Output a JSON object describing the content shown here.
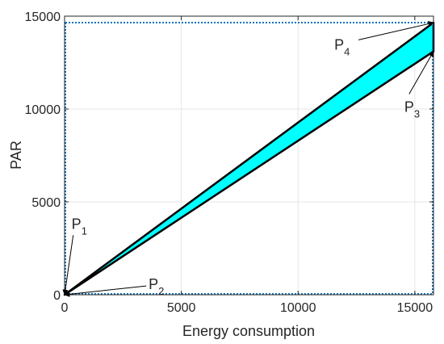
{
  "chart_data": {
    "type": "area",
    "title": "",
    "xlabel": "Energy consumption",
    "ylabel": "PAR",
    "xlim": [
      0,
      15800
    ],
    "ylim": [
      0,
      15000
    ],
    "xticks": [
      0,
      5000,
      10000,
      15000
    ],
    "yticks": [
      0,
      5000,
      10000,
      15000
    ],
    "xtick_labels": [
      "0",
      "5000",
      "10000",
      "15000"
    ],
    "ytick_labels": [
      "0",
      "5000",
      "10000",
      "15000"
    ],
    "grid": true,
    "region_color": "#00ffff",
    "edge_color": "#000000",
    "box_color": "#0072bd",
    "region_polygon": [
      {
        "x": 0,
        "y": 0
      },
      {
        "x": 15800,
        "y": 14650
      },
      {
        "x": 15800,
        "y": 13100
      },
      {
        "x": 0,
        "y": 0
      }
    ],
    "dotted_box": {
      "x": [
        0,
        15800
      ],
      "y": [
        0,
        14650
      ]
    },
    "annotations": [
      {
        "label": "P",
        "sub": "1",
        "target": {
          "x": 0,
          "y": 0
        },
        "text_at": {
          "x": 300,
          "y": 3550
        }
      },
      {
        "label": "P",
        "sub": "2",
        "target": {
          "x": 0,
          "y": 0
        },
        "text_at": {
          "x": 3600,
          "y": 300
        }
      },
      {
        "label": "P",
        "sub": "3",
        "target": {
          "x": 15800,
          "y": 13100
        },
        "text_at": {
          "x": 14550,
          "y": 9850
        }
      },
      {
        "label": "P",
        "sub": "4",
        "target": {
          "x": 15800,
          "y": 14650
        },
        "text_at": {
          "x": 11550,
          "y": 13200
        }
      }
    ]
  }
}
